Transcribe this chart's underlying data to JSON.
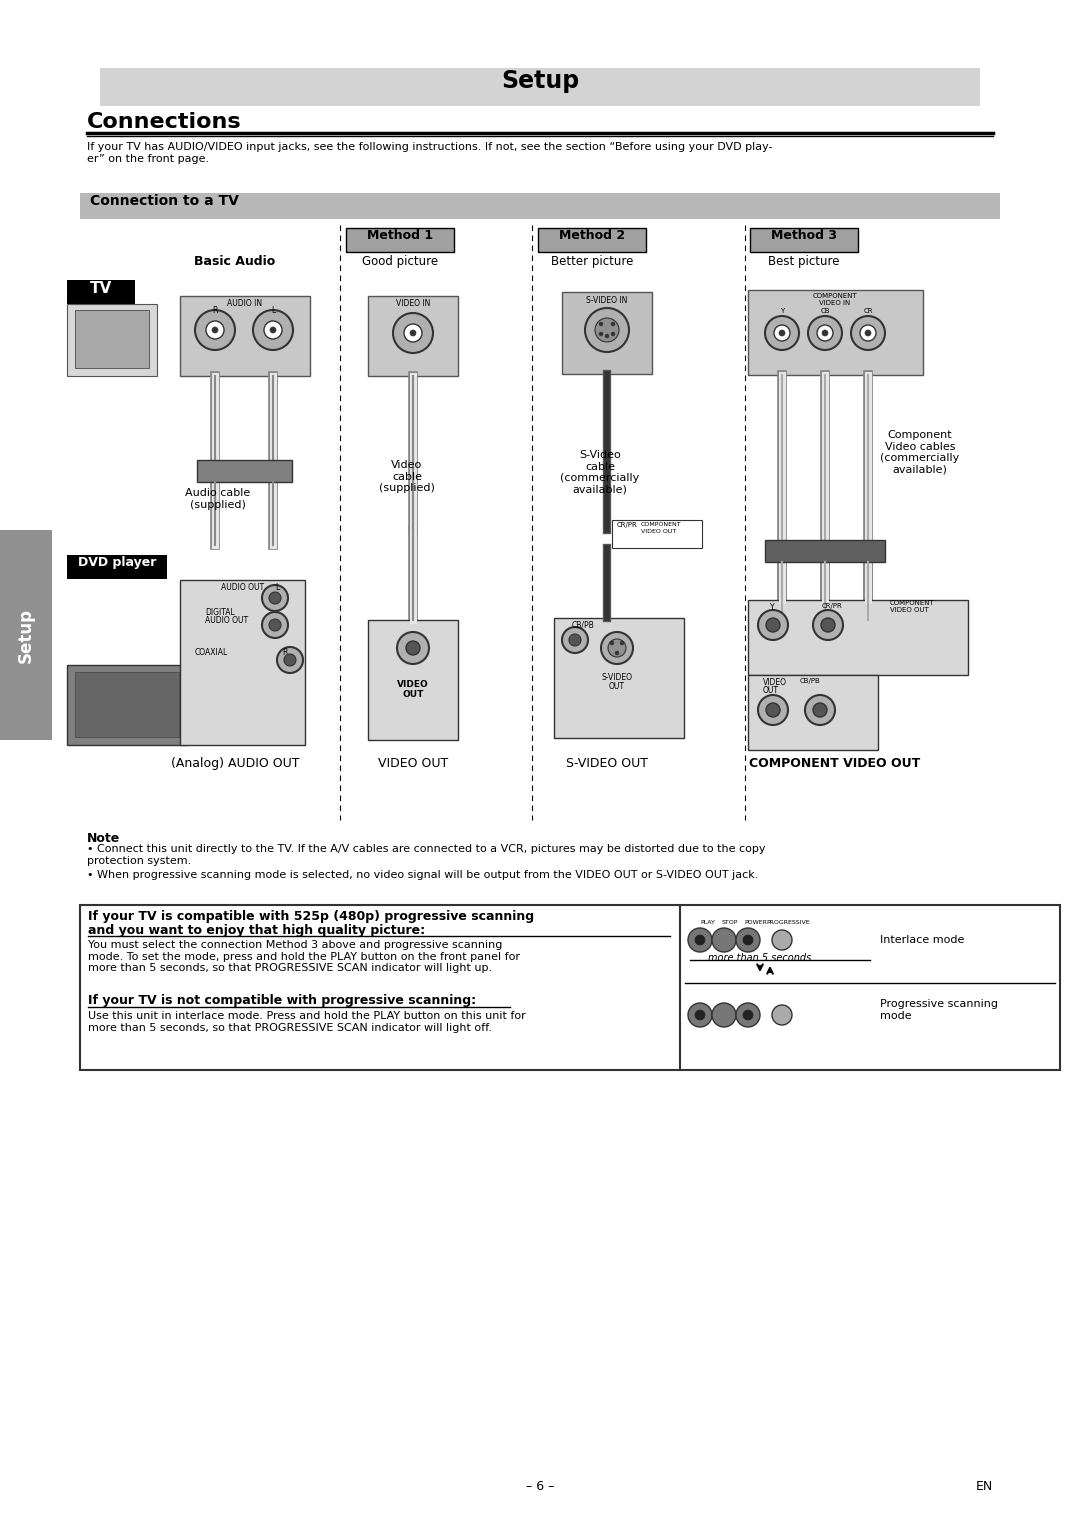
{
  "title": "Setup",
  "section_title": "Connections",
  "subtitle_text": "If your TV has AUDIO/VIDEO input jacks, see the following instructions. If not, see the section “Before using your DVD play-\ner” on the front page.",
  "connection_header": "Connection to a TV",
  "method_labels": [
    "Method 1",
    "Method 2",
    "Method 3"
  ],
  "method_subtitles": [
    "Good picture",
    "Better picture",
    "Best picture"
  ],
  "basic_audio_label": "Basic Audio",
  "tv_label": "TV",
  "dvd_label": "DVD player",
  "audio_cable_label": "Audio cable\n(supplied)",
  "video_cable_label": "Video\ncable\n(supplied)",
  "svideo_cable_label": "S-Video\ncable\n(commercially\navailable)",
  "component_cable_label": "Component\nVideo cables\n(commercially\navailable)",
  "out_labels": [
    "(Analog) AUDIO OUT",
    "VIDEO OUT",
    "S-VIDEO OUT",
    "COMPONENT VIDEO OUT"
  ],
  "note_title": "Note",
  "note_bullet1": "Connect this unit directly to the TV. If the A/V cables are connected to a VCR, pictures may be distorted due to the copy\nprotection system.",
  "note_bullet2": "When progressive scanning mode is selected, no video signal will be output from the VIDEO OUT or S-VIDEO OUT jack.",
  "box1_title_line1": "If your TV is compatible with 525p (480p) progressive scanning",
  "box1_title_line2": "and you want to enjoy that high quality picture:",
  "box1_text": "You must select the connection Method 3 above and progressive scanning\nmode. To set the mode, press and hold the PLAY button on the front panel for\nmore than 5 seconds, so that PROGRESSIVE SCAN indicator will light up.",
  "box2_title": "If your TV is not compatible with progressive scanning:",
  "box2_text": "Use this unit in interlace mode. Press and hold the PLAY button on this unit for\nmore than 5 seconds, so that PROGRESSIVE SCAN indicator will light off.",
  "interlace_label": "Interlace mode",
  "progressive_label": "Progressive scanning\nmode",
  "more_than_5s": "more than 5 seconds",
  "footer_left": "– 6 –",
  "footer_right": "EN",
  "bg_color": "#ffffff",
  "header_bg": "#d3d3d3",
  "section_bg": "#b8b8b8",
  "method_bg": "#a0a0a0",
  "setup_sidebar_bg": "#909090",
  "text_color": "#000000"
}
